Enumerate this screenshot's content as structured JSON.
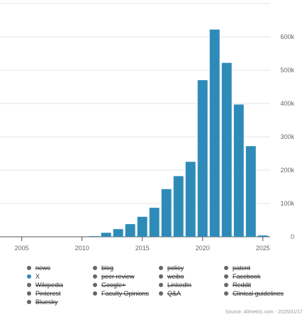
{
  "chart_data": {
    "type": "bar",
    "x": [
      2011,
      2012,
      2013,
      2014,
      2015,
      2016,
      2017,
      2018,
      2019,
      2020,
      2021,
      2022,
      2023,
      2024,
      2025
    ],
    "values": [
      2000,
      12000,
      23000,
      38000,
      60000,
      87000,
      143000,
      182000,
      225000,
      470000,
      622000,
      522000,
      397000,
      272000,
      4000
    ],
    "x_tick_labels": [
      "2005",
      "2010",
      "2015",
      "2020",
      "2025"
    ],
    "y_tick_labels": [
      "0",
      "100k",
      "200k",
      "300k",
      "400k",
      "500k",
      "600k"
    ],
    "ylim": [
      0,
      700000
    ],
    "xlim": [
      2003.2,
      2025.6
    ],
    "bar_color": "#2e8bb8",
    "grid": true,
    "y_axis_side": "right",
    "legend_position": "bottom"
  },
  "legend": {
    "items": [
      {
        "label": "news",
        "color": "#666666",
        "enabled": false
      },
      {
        "label": "blog",
        "color": "#666666",
        "enabled": false
      },
      {
        "label": "policy",
        "color": "#666666",
        "enabled": false
      },
      {
        "label": "patent",
        "color": "#666666",
        "enabled": false
      },
      {
        "label": "X",
        "color": "#2e8bb8",
        "enabled": true
      },
      {
        "label": "peer review",
        "color": "#666666",
        "enabled": false
      },
      {
        "label": "weibo",
        "color": "#666666",
        "enabled": false
      },
      {
        "label": "Facebook",
        "color": "#666666",
        "enabled": false
      },
      {
        "label": "Wikipedia",
        "color": "#666666",
        "enabled": false
      },
      {
        "label": "Google+",
        "color": "#666666",
        "enabled": false
      },
      {
        "label": "LinkedIn",
        "color": "#666666",
        "enabled": false
      },
      {
        "label": "Reddit",
        "color": "#666666",
        "enabled": false
      },
      {
        "label": "Pinterest",
        "color": "#666666",
        "enabled": false
      },
      {
        "label": "Faculty Opinions",
        "color": "#666666",
        "enabled": false
      },
      {
        "label": "Q&A",
        "color": "#666666",
        "enabled": false
      },
      {
        "label": "Clinical guidelines",
        "color": "#666666",
        "enabled": false
      },
      {
        "label": "Bluesky",
        "color": "#666666",
        "enabled": false
      }
    ]
  },
  "source": "Source: Altmetric.com - 2025/01/17"
}
